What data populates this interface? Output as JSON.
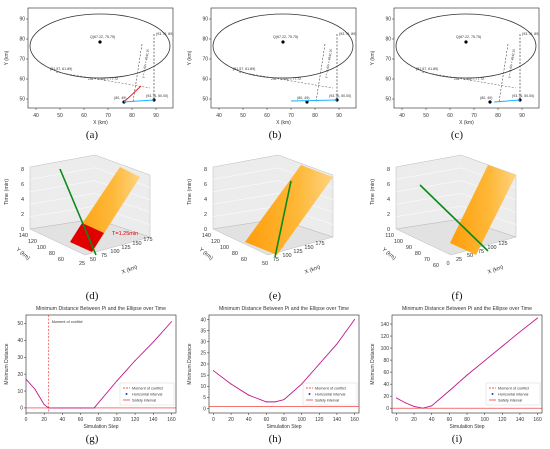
{
  "captions": [
    "(a)",
    "(b)",
    "(c)",
    "(d)",
    "(e)",
    "(f)",
    "(g)",
    "(h)",
    "(i)"
  ],
  "top_row": {
    "xlabel": "X (km)",
    "ylabel": "Y (km)",
    "xticks": [
      "40",
      "50",
      "60",
      "70",
      "80",
      "90"
    ],
    "yticks": [
      "50",
      "60",
      "70",
      "80",
      "90"
    ],
    "center_label": "Q(67.22, 75.75)",
    "point_left": "(51.57, 61.89)",
    "point_top_right": "(93.76, 89)",
    "point_bottom": "(80, 49)",
    "point_bottom_right": "(93.76, 50.00)",
    "line_eq": "25x + 0.00y = 77.72",
    "side_eq": "y = -0.42x + 4842.15"
  },
  "mid_row": {
    "zlabel": "Time (min)",
    "ylabel": "Y (km)",
    "xlabel": "X (km)",
    "d": {
      "zticks": [
        "0",
        "2",
        "4",
        "6",
        "8"
      ],
      "yticks": [
        "140",
        "120",
        "100",
        "80",
        "60"
      ],
      "xticks": [
        "25",
        "50",
        "75",
        "100",
        "125",
        "150",
        "175"
      ],
      "annotation": "T=1.25min"
    },
    "e": {
      "zticks": [
        "0",
        "2",
        "4",
        "6",
        "8"
      ],
      "yticks": [
        "140",
        "120",
        "100",
        "80",
        "60"
      ],
      "xticks": [
        "50",
        "75",
        "100",
        "125",
        "150",
        "175"
      ]
    },
    "f": {
      "zticks": [
        "0",
        "2",
        "4",
        "6",
        "8"
      ],
      "yticks": [
        "110",
        "100",
        "90",
        "80",
        "70",
        "60"
      ],
      "xticks": [
        "0",
        "25",
        "50",
        "75",
        "100",
        "125"
      ]
    }
  },
  "bottom_row": {
    "legend": [
      "Moment of conflict",
      "Horizontal interval",
      "Safety interval"
    ],
    "conflict_note": "Moment of conflict"
  },
  "chart_data": [
    {
      "type": "line",
      "title": "Minimum Distance Between Pi and the Ellipse over Time",
      "xlabel": "Simulation Step",
      "ylabel": "Minimum Distance",
      "xlim": [
        0,
        165
      ],
      "ylim": [
        -3,
        55
      ],
      "xticks": [
        0,
        20,
        40,
        60,
        80,
        100,
        120,
        140,
        160
      ],
      "yticks": [
        0,
        10,
        20,
        30,
        40,
        50
      ],
      "series": [
        {
          "name": "",
          "values_x": [
            0,
            10,
            20,
            25,
            40,
            60,
            75,
            100,
            120,
            140,
            160
          ],
          "values_y": [
            17,
            11,
            2,
            0,
            0,
            0,
            0,
            16,
            28,
            39,
            51
          ]
        }
      ],
      "conflict_x": 25,
      "safety_y": 0
    },
    {
      "type": "line",
      "title": "Minimum Distance Between Pi and the Ellipse over Time",
      "xlabel": "Simulation Step",
      "ylabel": "Minimum Distance",
      "xlim": [
        -5,
        165
      ],
      "ylim": [
        -2,
        42
      ],
      "xticks": [
        0,
        20,
        40,
        60,
        80,
        100,
        120,
        140,
        160
      ],
      "yticks": [
        0,
        5,
        10,
        15,
        20,
        25,
        30,
        35,
        40
      ],
      "series": [
        {
          "name": "",
          "values_x": [
            0,
            20,
            40,
            60,
            70,
            80,
            100,
            120,
            140,
            160
          ],
          "values_y": [
            17,
            11,
            6,
            3,
            3,
            4,
            11,
            20,
            29,
            40
          ]
        }
      ],
      "safety_y": 1
    },
    {
      "type": "line",
      "title": "Minimum Distance Between Pi and the Ellipse over Time",
      "xlabel": "Simulation Step",
      "ylabel": "Minimum Distance",
      "xlim": [
        -5,
        165
      ],
      "ylim": [
        -8,
        155
      ],
      "xticks": [
        0,
        20,
        40,
        60,
        80,
        100,
        120,
        140,
        160
      ],
      "yticks": [
        0,
        20,
        40,
        60,
        80,
        100,
        120,
        140
      ],
      "series": [
        {
          "name": "",
          "values_x": [
            0,
            10,
            20,
            30,
            40,
            60,
            80,
            100,
            120,
            140,
            160
          ],
          "values_y": [
            17,
            9,
            3,
            0,
            4,
            29,
            55,
            79,
            103,
            127,
            150
          ]
        }
      ],
      "safety_y": 0
    }
  ]
}
